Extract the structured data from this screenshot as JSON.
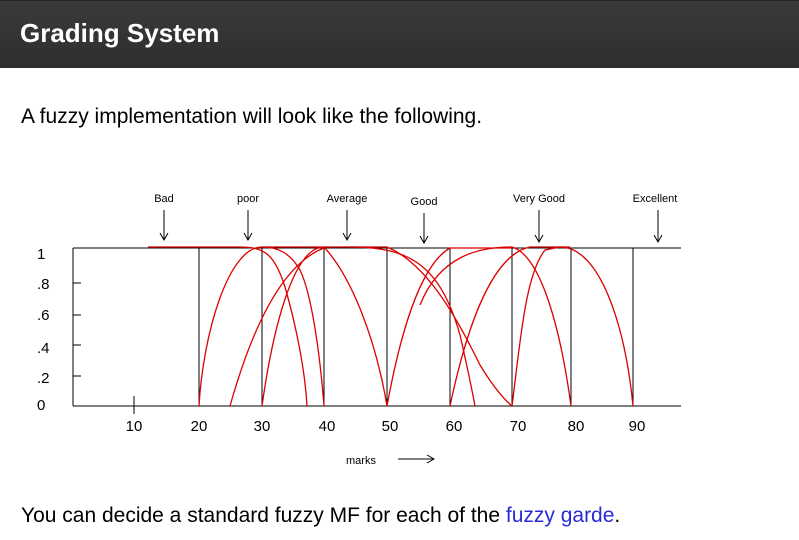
{
  "slide": {
    "title": "Grading System",
    "intro": "A fuzzy implementation will look like the following.",
    "footer_prefix": "You can decide a standard fuzzy MF for each of the ",
    "footer_link": "fuzzy garde",
    "footer_suffix": "."
  },
  "diagram": {
    "grades": [
      "Bad",
      "poor",
      "Average",
      "Good",
      "Very Good",
      "Excellent"
    ],
    "x_ticks": [
      "10",
      "20",
      "30",
      "40",
      "50",
      "60",
      "70",
      "80",
      "90"
    ],
    "y_ticks": [
      "1",
      ".8",
      ".6",
      ".4",
      ".2",
      "0"
    ],
    "x_axis_label": "marks",
    "curve_color": "#dd0000"
  }
}
